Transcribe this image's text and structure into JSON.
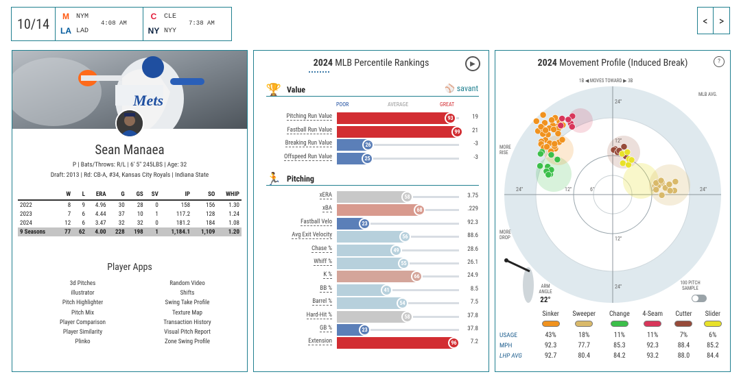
{
  "schedule": {
    "date": "10/14",
    "games": [
      {
        "away": "NYM",
        "home": "LAD",
        "time": "4:08 AM",
        "away_color": "#ff5910",
        "home_color": "#005a9c"
      },
      {
        "away": "CLE",
        "home": "NYY",
        "time": "7:38 AM",
        "away_color": "#e31937",
        "home_color": "#0c2340"
      }
    ],
    "prev": "<",
    "next": ">"
  },
  "player": {
    "name": "Sean Manaea",
    "info": "P | Bats/Throws: R/L | 6' 5\" 245LBS | Age: 32",
    "draft": "Draft: 2013 | Rd: CB-A, #34, Kansas City Royals | Indiana State",
    "stat_headers": [
      "",
      "W",
      "L",
      "ERA",
      "G",
      "GS",
      "SV",
      "IP",
      "SO",
      "WHIP"
    ],
    "stats": [
      [
        "2022",
        "8",
        "9",
        "4.96",
        "30",
        "28",
        "0",
        "158",
        "156",
        "1.30"
      ],
      [
        "2023",
        "7",
        "6",
        "4.44",
        "37",
        "10",
        "1",
        "117.2",
        "128",
        "1.24"
      ],
      [
        "2024",
        "12",
        "6",
        "3.47",
        "32",
        "32",
        "0",
        "181.2",
        "184",
        "1.08"
      ]
    ],
    "total": [
      "9 Seasons",
      "77",
      "62",
      "4.00",
      "228",
      "198",
      "1",
      "1,184.1",
      "1,109",
      "1.20"
    ],
    "apps_title": "Player Apps",
    "apps_left": [
      "3d Pitches",
      "illustrator",
      "Pitch Highlighter",
      "Pitch Mix",
      "Player Comparison",
      "Player Similarity",
      "Plinko"
    ],
    "apps_right": [
      "Random Video",
      "Shifts",
      "Swing Take Profile",
      "Texture Map",
      "Transaction History",
      "Visual Pitch Report",
      "Zone Swing Profile"
    ]
  },
  "percentiles": {
    "year": "2024",
    "title": "MLB Percentile Rankings",
    "value_label": "Value",
    "pitching_label": "Pitching",
    "savant": "savant",
    "scale": {
      "poor": "POOR",
      "average": "AVERAGE",
      "great": "GREAT"
    },
    "value_rows": [
      {
        "label": "Pitching Run Value",
        "pct": 93,
        "value": "19",
        "color": "#d22d32"
      },
      {
        "label": "Fastball Run Value",
        "pct": 99,
        "value": "21",
        "color": "#d22d32"
      },
      {
        "label": "Breaking Run Value",
        "pct": 26,
        "value": "-3",
        "color": "#5b7fb8"
      },
      {
        "label": "Offspeed Run Value",
        "pct": 25,
        "value": "-3",
        "color": "#5b7fb8"
      }
    ],
    "pitching_rows": [
      {
        "label": "xERA",
        "pct": 58,
        "value": "3.75",
        "color": "#c8c8c8"
      },
      {
        "label": "xBA",
        "pct": 68,
        "value": ".229",
        "color": "#d89a8e"
      },
      {
        "label": "Fastball Velo",
        "pct": 23,
        "value": "92.3",
        "color": "#5b7fb8"
      },
      {
        "label": "Avg Exit Velocity",
        "pct": 56,
        "value": "88.6",
        "color": "#b7d0dc"
      },
      {
        "label": "Chase %",
        "pct": 49,
        "value": "28.6",
        "color": "#b7d0dc"
      },
      {
        "label": "Whiff %",
        "pct": 55,
        "value": "26.1",
        "color": "#b7d0dc"
      },
      {
        "label": "K %",
        "pct": 66,
        "value": "24.9",
        "color": "#d4a59a"
      },
      {
        "label": "BB %",
        "pct": 41,
        "value": "8.5",
        "color": "#b7d0dc"
      },
      {
        "label": "Barrel %",
        "pct": 54,
        "value": "7.5",
        "color": "#b7d0dc"
      },
      {
        "label": "Hard-Hit %",
        "pct": 58,
        "value": "37.8",
        "color": "#c8c8c8"
      },
      {
        "label": "GB %",
        "pct": 23,
        "value": "37.8",
        "color": "#5b7fb8"
      },
      {
        "label": "Extension",
        "pct": 96,
        "value": "7.2",
        "color": "#d22d32"
      }
    ]
  },
  "movement": {
    "year": "2024",
    "title": "Movement Profile (Induced Break)",
    "direction": "1B ◀  MOVES TOWARD  ▶ 3B",
    "more_rise": "MORE RISE",
    "more_drop": "MORE DROP",
    "mlb_avg": "MLB AVG.",
    "arm_angle_label": "ARM ANGLE",
    "arm_angle": "22°",
    "sample_label": "100 PITCH SAMPLE",
    "rings": [
      "24\"",
      "12\"",
      "12\"",
      "24\"",
      "24\"",
      "12\"",
      "6\"",
      "12\"",
      "24\""
    ],
    "pitches": [
      {
        "name": "Sinker",
        "color": "#f0921e",
        "usage": "43%",
        "mph": "92.3",
        "lhp": "92.7"
      },
      {
        "name": "Sweeper",
        "color": "#d9b96a",
        "usage": "18%",
        "mph": "77.7",
        "lhp": "80.4"
      },
      {
        "name": "Change",
        "color": "#3cbf4a",
        "usage": "11%",
        "mph": "85.3",
        "lhp": "84.2"
      },
      {
        "name": "4-Seam",
        "color": "#d8365a",
        "usage": "11%",
        "mph": "92.3",
        "lhp": "93.2"
      },
      {
        "name": "Cutter",
        "color": "#974b3a",
        "usage": "7%",
        "mph": "88.4",
        "lhp": "88.0"
      },
      {
        "name": "Slider",
        "color": "#e8e12a",
        "usage": "6%",
        "mph": "85.2",
        "lhp": "84.4"
      }
    ],
    "row_labels": {
      "usage": "USAGE",
      "mph": "MPH",
      "lhp": "LHP AVG"
    }
  }
}
